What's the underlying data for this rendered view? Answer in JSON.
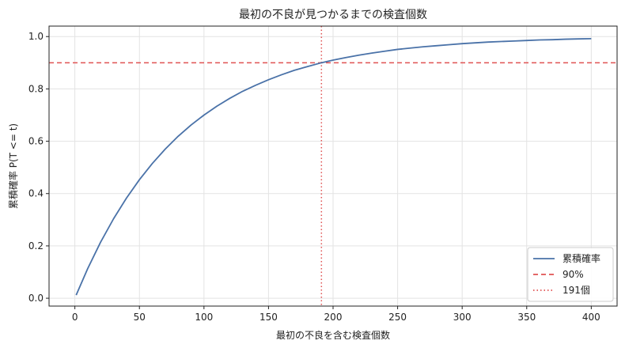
{
  "chart_data": {
    "type": "line",
    "title": "最初の不良が見つかるまでの検査個数",
    "xlabel": "最初の不良を含む検査個数",
    "ylabel": "累積確率 P(T <= t)",
    "xlim": [
      -20,
      420
    ],
    "ylim": [
      -0.03,
      1.04
    ],
    "xticks": [
      0,
      50,
      100,
      150,
      200,
      250,
      300,
      350,
      400
    ],
    "yticks": [
      0.0,
      0.2,
      0.4,
      0.6,
      0.8,
      1.0
    ],
    "ytick_labels": [
      "0.0",
      "0.2",
      "0.4",
      "0.6",
      "0.8",
      "1.0"
    ],
    "grid": true,
    "legend_position": "bottom-right",
    "series": [
      {
        "name": "累積確率",
        "style": "solid",
        "color": "#4a72a8",
        "x": [
          1,
          10,
          20,
          30,
          40,
          50,
          60,
          70,
          80,
          90,
          100,
          110,
          120,
          130,
          140,
          150,
          160,
          170,
          180,
          191,
          200,
          210,
          220,
          230,
          240,
          250,
          260,
          270,
          280,
          290,
          300,
          310,
          320,
          330,
          340,
          350,
          360,
          370,
          380,
          390,
          400
        ],
        "y": [
          0.012,
          0.114,
          0.215,
          0.304,
          0.383,
          0.453,
          0.515,
          0.57,
          0.619,
          0.662,
          0.7,
          0.734,
          0.764,
          0.791,
          0.814,
          0.835,
          0.854,
          0.871,
          0.885,
          0.9,
          0.91,
          0.92,
          0.929,
          0.937,
          0.944,
          0.951,
          0.956,
          0.961,
          0.965,
          0.969,
          0.973,
          0.976,
          0.979,
          0.981,
          0.983,
          0.985,
          0.987,
          0.988,
          0.99,
          0.991,
          0.992
        ]
      }
    ],
    "reference_lines": [
      {
        "name": "90%",
        "orientation": "horizontal",
        "value": 0.9,
        "style": "dashed",
        "color": "#e05252"
      },
      {
        "name": "191個",
        "orientation": "vertical",
        "value": 191,
        "style": "dotted",
        "color": "#e05252"
      }
    ]
  }
}
